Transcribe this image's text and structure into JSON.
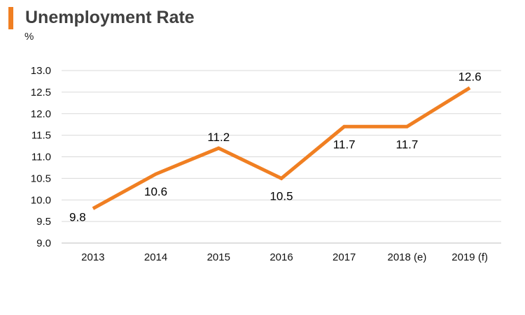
{
  "title": "Unemployment Rate",
  "unit": "%",
  "colors": {
    "accent": "#F07F22",
    "line": "#F07F22",
    "grid": "#D9D9D9"
  },
  "chart_data": {
    "type": "line",
    "categories": [
      "2013",
      "2014",
      "2015",
      "2016",
      "2017",
      "2018 (e)",
      "2019 (f)"
    ],
    "series": [
      {
        "values": [
          9.8,
          10.6,
          11.2,
          10.5,
          11.7,
          11.7,
          12.6
        ],
        "labels": [
          "9.8",
          "10.6",
          "11.2",
          "10.5",
          "11.7",
          "11.7",
          "12.6"
        ]
      }
    ],
    "ylabel": "%",
    "ylim": [
      9.0,
      13.0
    ],
    "yticks": [
      "9.0",
      "9.5",
      "10.0",
      "10.5",
      "11.0",
      "11.5",
      "12.0",
      "12.5",
      "13.0"
    ],
    "grid": true,
    "legend": "none"
  }
}
